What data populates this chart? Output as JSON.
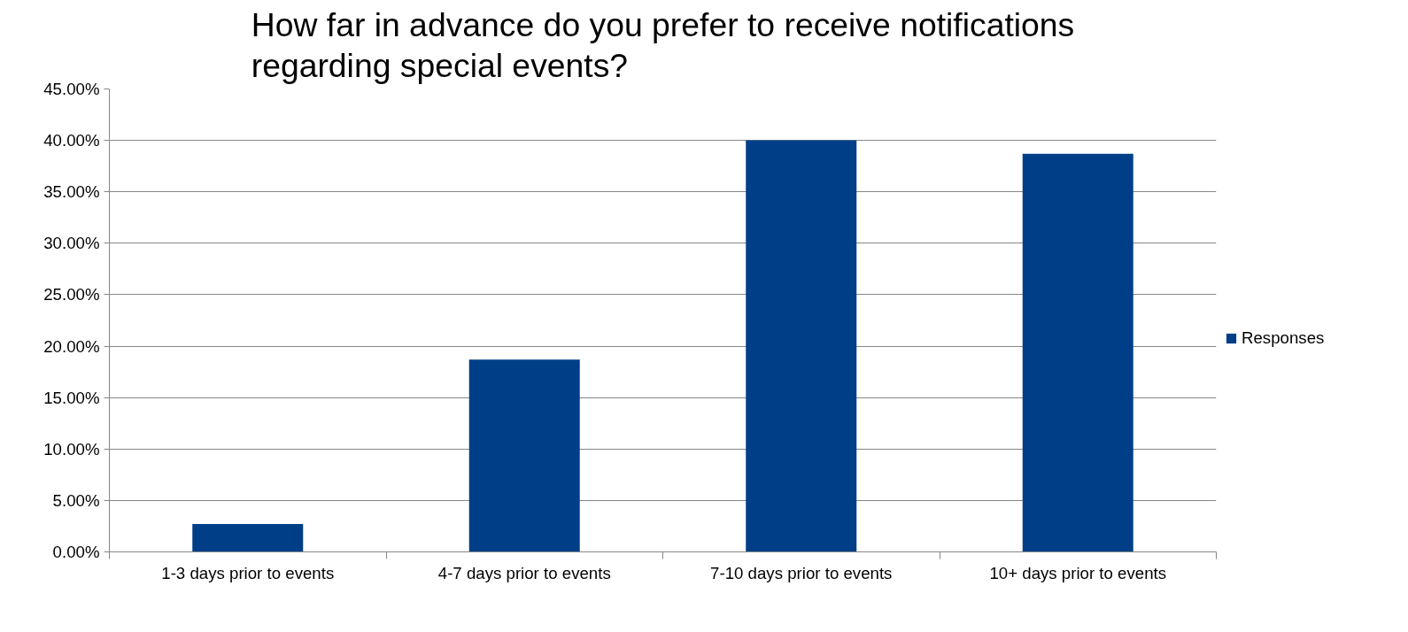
{
  "chart_data": {
    "type": "bar",
    "title": "How far in advance do you prefer to receive notifications regarding special events?",
    "categories": [
      "1-3 days prior to events",
      "4-7 days prior to events",
      "7-10 days prior to events",
      "10+ days prior to events"
    ],
    "series": [
      {
        "name": "Responses",
        "color": "#003f87",
        "values": [
          2.7,
          18.7,
          40.0,
          38.7
        ]
      }
    ],
    "ylim": [
      0,
      45
    ],
    "yticks": [
      {
        "value": 0,
        "label": "0.00%"
      },
      {
        "value": 5,
        "label": "5.00%"
      },
      {
        "value": 10,
        "label": "10.00%"
      },
      {
        "value": 15,
        "label": "15.00%"
      },
      {
        "value": 20,
        "label": "20.00%"
      },
      {
        "value": 25,
        "label": "25.00%"
      },
      {
        "value": 30,
        "label": "30.00%"
      },
      {
        "value": 35,
        "label": "35.00%"
      },
      {
        "value": 40,
        "label": "40.00%"
      },
      {
        "value": 45,
        "label": "45.00%"
      }
    ],
    "grid": "y",
    "legend": "right"
  }
}
